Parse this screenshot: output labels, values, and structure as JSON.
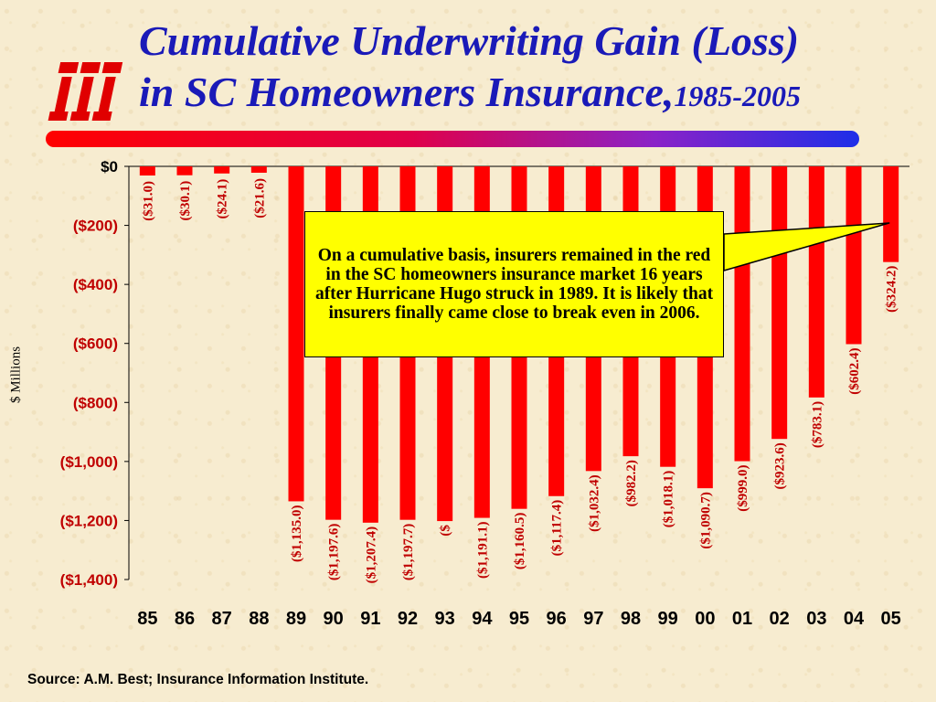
{
  "title": {
    "line1": "Cumulative Underwriting Gain (Loss)",
    "line2": "in SC Homeowners Insurance,",
    "years": "1985-2005"
  },
  "logo": {
    "text": "iii",
    "color": "#e00000"
  },
  "colors": {
    "bar": "#ff0000",
    "title": "#1a1ab8",
    "callout_bg": "#ffff00"
  },
  "callout": {
    "text": "On a cumulative basis, insurers remained in the red in the SC homeowners insurance market 16 years after Hurricane Hugo struck in 1989.  It is likely that insurers finally came close to break even in 2006.",
    "points_to": "05"
  },
  "source": "Source: A.M. Best; Insurance Information Institute.",
  "chart_data": {
    "type": "bar",
    "ylabel": "$ Millions",
    "ylim": [
      -1400,
      0
    ],
    "yticks": [
      {
        "value": 0,
        "label": "$0"
      },
      {
        "value": -200,
        "label": "($200)"
      },
      {
        "value": -400,
        "label": "($400)"
      },
      {
        "value": -600,
        "label": "($600)"
      },
      {
        "value": -800,
        "label": "($800)"
      },
      {
        "value": -1000,
        "label": "($1,000)"
      },
      {
        "value": -1200,
        "label": "($1,200)"
      },
      {
        "value": -1400,
        "label": "($1,400)"
      }
    ],
    "categories": [
      "85",
      "86",
      "87",
      "88",
      "89",
      "90",
      "91",
      "92",
      "93",
      "94",
      "95",
      "96",
      "97",
      "98",
      "99",
      "00",
      "01",
      "02",
      "03",
      "04",
      "05"
    ],
    "values": [
      -31.0,
      -30.1,
      -24.1,
      -21.6,
      -1135.0,
      -1197.6,
      -1207.4,
      -1197.7,
      -1202.0,
      -1191.1,
      -1160.5,
      -1117.4,
      -1032.4,
      -982.2,
      -1018.1,
      -1090.7,
      -999.0,
      -923.6,
      -783.1,
      -602.4,
      -324.2
    ],
    "value_labels": [
      "($31.0)",
      "($30.1)",
      "($24.1)",
      "($21.6)",
      "($1,135.0)",
      "($1,197.6)",
      "($1,207.4)",
      "($1,197.7)",
      "($",
      "($1,191.1)",
      "($1,160.5)",
      "($1,117.4)",
      "($1,032.4)",
      "($982.2)",
      "($1,018.1)",
      "($1,090.7)",
      "($999.0)",
      "($923.6)",
      "($783.1)",
      "($602.4)",
      "($324.2)"
    ],
    "grid": false,
    "legend": "none"
  }
}
